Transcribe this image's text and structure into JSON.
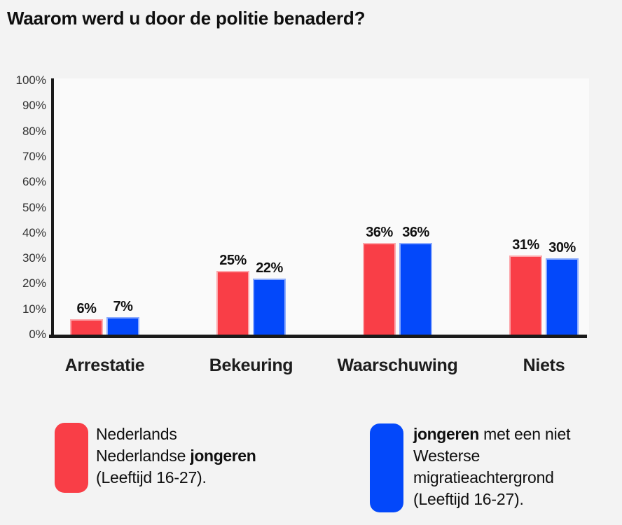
{
  "title": "Waarom werd u door de politie benaderd?",
  "chart_data": {
    "type": "bar",
    "title": "Waarom werd u door de politie benaderd?",
    "categories": [
      "Arrestatie",
      "Bekeuring",
      "Waarschuwing",
      "Niets"
    ],
    "series": [
      {
        "name": "Nederlands Nederlandse jongeren (Leeftijd 16-27).",
        "color": "#F93E47",
        "values": [
          6,
          25,
          36,
          31
        ],
        "value_labels": [
          "6%",
          "25%",
          "36%",
          "31%"
        ]
      },
      {
        "name": "jongeren met een niet Westerse migratieachtergrond (Leeftijd 16-27).",
        "color": "#0348FA",
        "values": [
          7,
          22,
          36,
          30
        ],
        "value_labels": [
          "7%",
          "22%",
          "36%",
          "30%"
        ]
      }
    ],
    "ylabel": "",
    "xlabel": "",
    "ylim": [
      0,
      100
    ],
    "y_ticks": [
      "100%",
      "90%",
      "80%",
      "70%",
      "60%",
      "50%",
      "40%",
      "30%",
      "20%",
      "10%",
      "0%"
    ],
    "grid": "off",
    "legend_position": "bottom"
  },
  "legend": {
    "items": [
      {
        "color": "#F93E47",
        "series": "red",
        "lines": [
          [
            {
              "t": "Nederlands",
              "b": false
            }
          ],
          [
            {
              "t": "Nederlandse ",
              "b": false
            },
            {
              "t": "jongeren",
              "b": true
            }
          ],
          [
            {
              "t": "(Leeftijd 16-27).",
              "b": false
            }
          ]
        ]
      },
      {
        "color": "#0348FA",
        "series": "blue",
        "lines": [
          [
            {
              "t": "jongeren",
              "b": true
            },
            {
              "t": " met een niet",
              "b": false
            }
          ],
          [
            {
              "t": "Westerse",
              "b": false
            }
          ],
          [
            {
              "t": "migratieachtergrond",
              "b": false
            }
          ],
          [
            {
              "t": "(Leeftijd 16-27).",
              "b": false
            }
          ]
        ]
      }
    ]
  },
  "colors": {
    "background": "#F3F3F3",
    "plot_background": "#FAFAFA",
    "axis": "#1A1A1A",
    "tick_text": "#333333",
    "label_text": "#111111"
  }
}
